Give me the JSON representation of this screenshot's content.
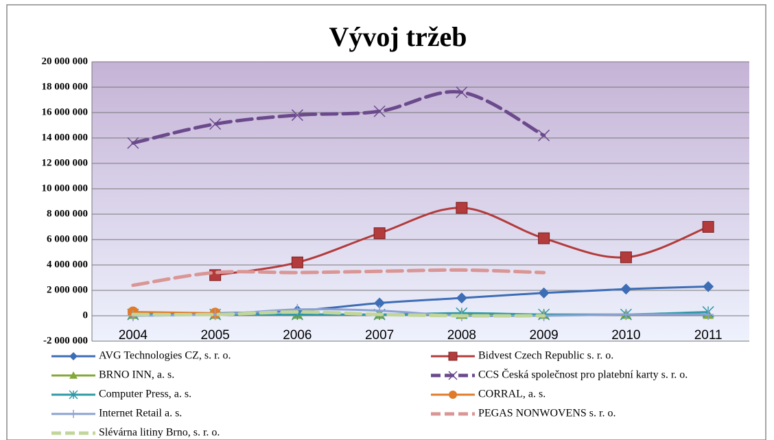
{
  "chart_data": {
    "type": "line",
    "title": "Vývoj tržeb",
    "categories": [
      "2004",
      "2005",
      "2006",
      "2007",
      "2008",
      "2009",
      "2010",
      "2011"
    ],
    "ylim": [
      -2000000,
      20000000
    ],
    "yticks": [
      {
        "value": -2000000,
        "label": "-2 000 000"
      },
      0,
      {
        "value": 2000000,
        "label": "2 000 000"
      },
      {
        "value": 4000000,
        "label": "4 000 000"
      },
      {
        "value": 6000000,
        "label": "6 000 000"
      },
      {
        "value": 8000000,
        "label": "8 000 000"
      },
      {
        "value": 10000000,
        "label": "10 000 000"
      },
      {
        "value": 12000000,
        "label": "12 000 000"
      },
      {
        "value": 14000000,
        "label": "14 000 000"
      },
      {
        "value": 16000000,
        "label": "16 000 000"
      },
      {
        "value": 18000000,
        "label": "18 000 000"
      },
      {
        "value": 20000000,
        "label": "20 000 000"
      }
    ],
    "grid": true,
    "smooth": true,
    "legend": "bottom",
    "series": [
      {
        "name": "AVG Technologies CZ, s. r. o.",
        "color": "#3d6db5",
        "marker": "diamond",
        "dashed": false,
        "values": [
          100000,
          200000,
          400000,
          1000000,
          1400000,
          1800000,
          2100000,
          2300000
        ]
      },
      {
        "name": "Bidvest Czech Republic s. r. o.",
        "color": "#b33b3b",
        "marker": "square",
        "dashed": false,
        "values": [
          null,
          3200000,
          4200000,
          6500000,
          8500000,
          6100000,
          4600000,
          7000000
        ]
      },
      {
        "name": "BRNO INN, a. s.",
        "color": "#86a83a",
        "marker": "triangle",
        "dashed": false,
        "values": [
          100000,
          100000,
          100000,
          100000,
          100000,
          100000,
          100000,
          100000
        ]
      },
      {
        "name": "CCS Česká společnost pro platební karty s. r. o.",
        "color": "#6b4a8c",
        "marker": "x",
        "dashed": true,
        "values": [
          13600000,
          15100000,
          15800000,
          16100000,
          17600000,
          14200000,
          null,
          null
        ]
      },
      {
        "name": "Computer Press, a. s.",
        "color": "#2e98a6",
        "marker": "asterisk",
        "dashed": false,
        "values": [
          100000,
          100000,
          100000,
          100000,
          200000,
          100000,
          100000,
          300000
        ]
      },
      {
        "name": "CORRAL, a. s.",
        "color": "#e07b2a",
        "marker": "circle",
        "dashed": false,
        "values": [
          300000,
          200000,
          null,
          null,
          null,
          null,
          null,
          null
        ]
      },
      {
        "name": "Internet Retail a. s.",
        "color": "#8ca2d3",
        "marker": "plus",
        "dashed": false,
        "values": [
          0,
          100000,
          500000,
          400000,
          0,
          0,
          100000,
          100000
        ]
      },
      {
        "name": "PEGAS NONWOVENS s. r. o.",
        "color": "#d99694",
        "marker": "none",
        "dashed": true,
        "values": [
          2400000,
          3400000,
          3400000,
          3500000,
          3600000,
          3400000,
          null,
          null
        ]
      },
      {
        "name": "Slévárna litiny Brno, s. r. o.",
        "color": "#c2d69b",
        "marker": "none",
        "dashed": true,
        "values": [
          100000,
          100000,
          300000,
          100000,
          0,
          0,
          null,
          null
        ]
      }
    ]
  }
}
